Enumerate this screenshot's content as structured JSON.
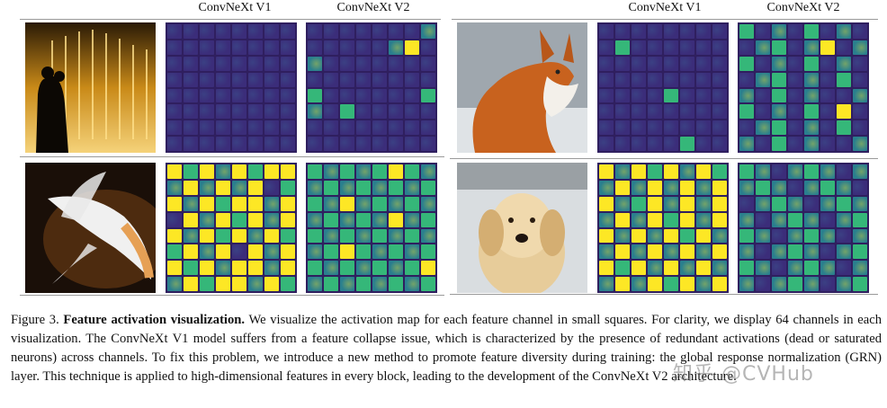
{
  "headers": {
    "left_v1": "ConvNeXt V1",
    "left_v2": "ConvNeXt V2",
    "right_v1": "ConvNeXt V1",
    "right_v2": "ConvNeXt V2"
  },
  "caption": {
    "prefix": "Figure 3.",
    "title": "Feature activation visualization.",
    "body": "We visualize the activation map for each feature channel in small squares. For clarity, we display 64 channels in each visualization. The ConvNeXt V1 model suffers from a feature collapse issue, which is characterized by the presence of redundant activations (dead or saturated neurons) across channels. To fix this problem, we introduce a new method to promote feature diversity during training: the global response normalization (GRN) layer. This technique is applied to high-dimensional features in every block, leading to the development of the ConvNeXt V2 architecture."
  },
  "watermark": "知乎 @CVHub",
  "palette": {
    "dark": "#3b2d7a",
    "teal": "#2a7f8e",
    "green": "#35b779",
    "yellow": "#fde725",
    "frame": "#2f1f5f"
  }
}
